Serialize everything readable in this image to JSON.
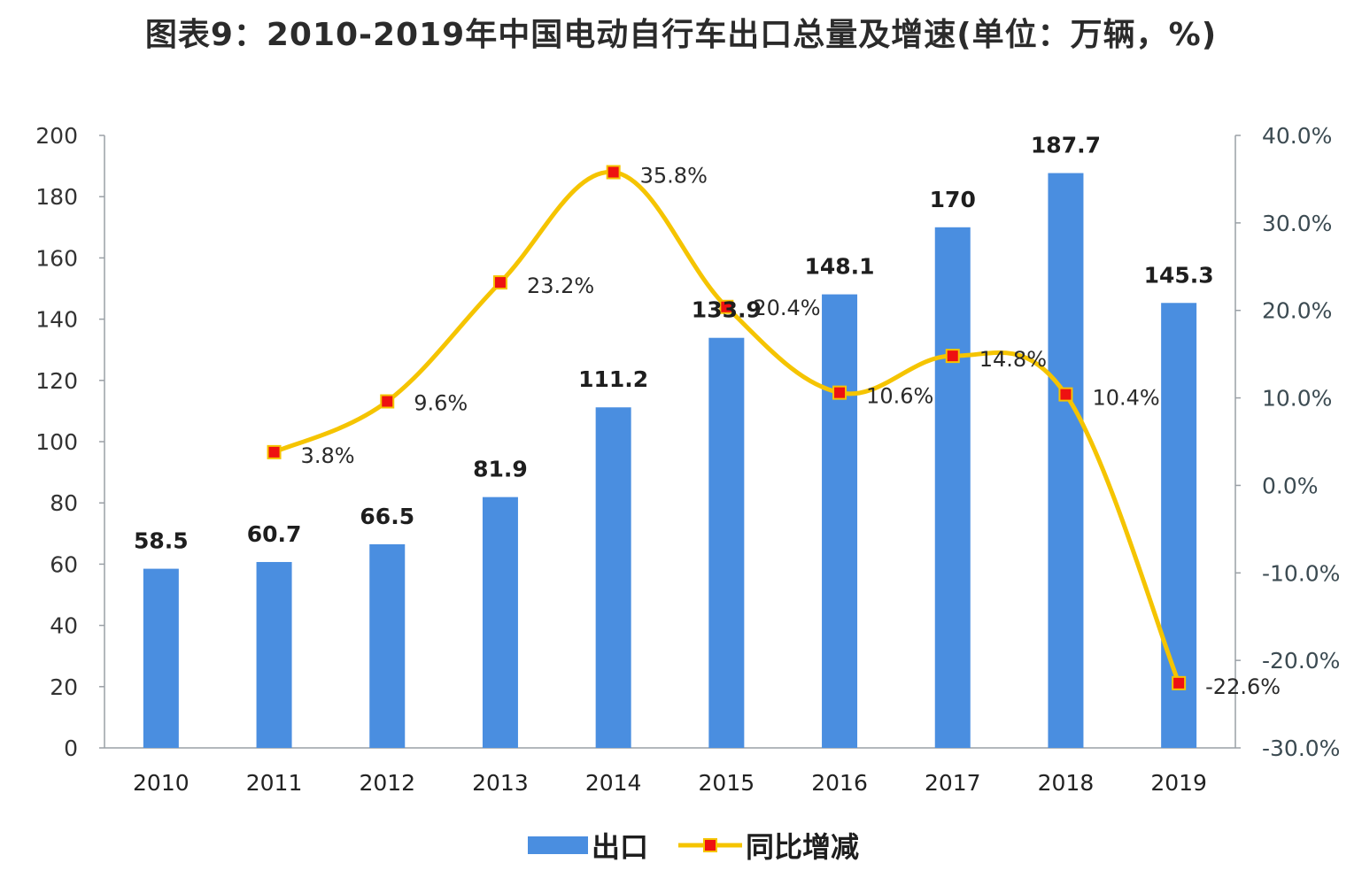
{
  "chart_data": {
    "type": "bar",
    "title": "图表9：2010-2019年中国电动自行车出口总量及增速(单位：万辆，%)",
    "categories": [
      "2010",
      "2011",
      "2012",
      "2013",
      "2014",
      "2015",
      "2016",
      "2017",
      "2018",
      "2019"
    ],
    "series": [
      {
        "name": "出口",
        "type": "bar",
        "axis": "left",
        "color": "#4a8ee0",
        "values": [
          58.5,
          60.7,
          66.5,
          81.9,
          111.2,
          133.9,
          148.1,
          170,
          187.7,
          145.3
        ],
        "labels": [
          "58.5",
          "60.7",
          "66.5",
          "81.9",
          "111.2",
          "133.9",
          "148.1",
          "170",
          "187.7",
          "145.3"
        ]
      },
      {
        "name": "同比增减",
        "type": "line",
        "axis": "right",
        "color": "#f5c400",
        "marker_color": "#ee1111",
        "values": [
          null,
          3.8,
          9.6,
          23.2,
          35.8,
          20.4,
          10.6,
          14.8,
          10.4,
          -22.6
        ],
        "labels": [
          "",
          "3.8%",
          "9.6%",
          "23.2%",
          "35.8%",
          "20.4%",
          "10.6%",
          "14.8%",
          "10.4%",
          "-22.6%"
        ]
      }
    ],
    "left_axis": {
      "ylim": [
        0,
        200
      ],
      "ticks": [
        0,
        20,
        40,
        60,
        80,
        100,
        120,
        140,
        160,
        180,
        200
      ],
      "tick_labels": [
        "0",
        "20",
        "40",
        "60",
        "80",
        "100",
        "120",
        "140",
        "160",
        "180",
        "200"
      ]
    },
    "right_axis": {
      "ylim": [
        -30,
        40
      ],
      "ticks": [
        -30,
        -20,
        -10,
        0,
        10,
        20,
        30,
        40
      ],
      "tick_labels": [
        "-30.0%",
        "-20.0%",
        "-10.0%",
        "0.0%",
        "10.0%",
        "20.0%",
        "30.0%",
        "40.0%"
      ]
    },
    "grid": false,
    "legend_position": "bottom-center"
  }
}
